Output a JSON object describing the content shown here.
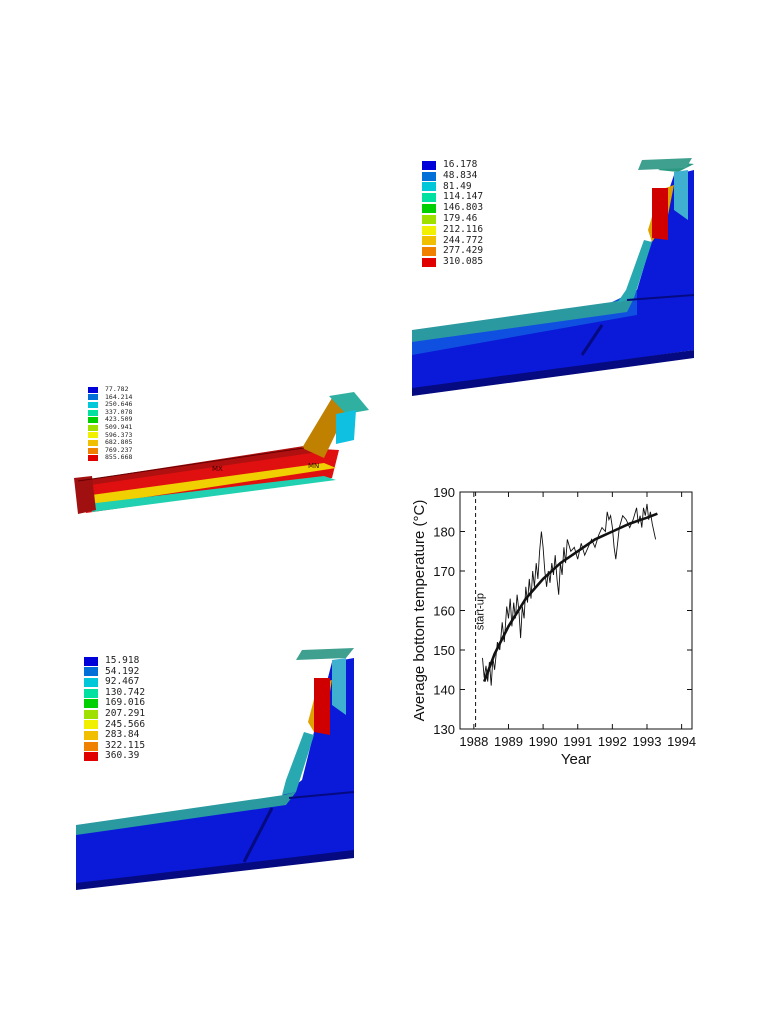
{
  "panels": [
    {
      "id": "panel-1",
      "legend": [
        "16.178",
        "48.834",
        "81.49",
        "114.147",
        "146.803",
        "179.46",
        "212.116",
        "244.772",
        "277.429",
        "310.085"
      ]
    },
    {
      "id": "panel-2",
      "legend": [
        "77.782",
        "164.214",
        "250.646",
        "337.078",
        "423.509",
        "509.941",
        "596.373",
        "682.805",
        "769.237",
        "855.668"
      ],
      "markers": {
        "mx": "MX",
        "mn": "MN"
      }
    },
    {
      "id": "panel-3",
      "legend": [
        "15.918",
        "54.192",
        "92.467",
        "130.742",
        "169.016",
        "207.291",
        "245.566",
        "283.84",
        "322.115",
        "360.39"
      ]
    }
  ],
  "legend_colors": [
    "#0000d8",
    "#0070d8",
    "#00c8d8",
    "#00e0a0",
    "#00d000",
    "#a0e000",
    "#f0f000",
    "#f0c000",
    "#f08000",
    "#e00000"
  ],
  "chart_data": {
    "type": "line",
    "title": "",
    "xlabel": "Year",
    "ylabel": "Average bottom temperature   (°C)",
    "xlim": [
      1987.6,
      1994.3
    ],
    "ylim": [
      130,
      190
    ],
    "xticks": [
      1988,
      1989,
      1990,
      1991,
      1992,
      1993,
      1994
    ],
    "yticks": [
      130,
      140,
      150,
      160,
      170,
      180,
      190
    ],
    "annotation": {
      "text": "start-up",
      "x": 1988.05
    },
    "series": [
      {
        "style": "noisy",
        "points": [
          [
            1988.25,
            148
          ],
          [
            1988.3,
            143
          ],
          [
            1988.35,
            146
          ],
          [
            1988.4,
            142
          ],
          [
            1988.45,
            147
          ],
          [
            1988.5,
            141
          ],
          [
            1988.55,
            148
          ],
          [
            1988.6,
            145
          ],
          [
            1988.68,
            152
          ],
          [
            1988.75,
            150
          ],
          [
            1988.82,
            157
          ],
          [
            1988.88,
            152
          ],
          [
            1988.95,
            161
          ],
          [
            1989.0,
            158
          ],
          [
            1989.05,
            163
          ],
          [
            1989.1,
            156
          ],
          [
            1989.15,
            162
          ],
          [
            1989.2,
            158
          ],
          [
            1989.25,
            164
          ],
          [
            1989.3,
            160
          ],
          [
            1989.35,
            153
          ],
          [
            1989.4,
            161
          ],
          [
            1989.45,
            158
          ],
          [
            1989.5,
            166
          ],
          [
            1989.55,
            162
          ],
          [
            1989.6,
            168
          ],
          [
            1989.65,
            163
          ],
          [
            1989.7,
            170
          ],
          [
            1989.75,
            166
          ],
          [
            1989.8,
            172
          ],
          [
            1989.85,
            168
          ],
          [
            1989.9,
            175
          ],
          [
            1989.95,
            180
          ],
          [
            1990.0,
            176
          ],
          [
            1990.05,
            170
          ],
          [
            1990.1,
            166
          ],
          [
            1990.15,
            170
          ],
          [
            1990.2,
            167
          ],
          [
            1990.25,
            172
          ],
          [
            1990.3,
            169
          ],
          [
            1990.35,
            174
          ],
          [
            1990.4,
            168
          ],
          [
            1990.45,
            164
          ],
          [
            1990.5,
            172
          ],
          [
            1990.55,
            169
          ],
          [
            1990.6,
            176
          ],
          [
            1990.65,
            172
          ],
          [
            1990.7,
            178
          ],
          [
            1990.8,
            175
          ],
          [
            1990.9,
            176
          ],
          [
            1991.0,
            173
          ],
          [
            1991.1,
            177
          ],
          [
            1991.2,
            174
          ],
          [
            1991.3,
            176
          ],
          [
            1991.4,
            178
          ],
          [
            1991.5,
            176
          ],
          [
            1991.6,
            179
          ],
          [
            1991.7,
            181
          ],
          [
            1991.8,
            180
          ],
          [
            1991.85,
            185
          ],
          [
            1991.9,
            183
          ],
          [
            1991.95,
            184
          ],
          [
            1992.0,
            181
          ],
          [
            1992.05,
            176
          ],
          [
            1992.1,
            173
          ],
          [
            1992.15,
            177
          ],
          [
            1992.2,
            181
          ],
          [
            1992.3,
            184
          ],
          [
            1992.4,
            183
          ],
          [
            1992.5,
            181
          ],
          [
            1992.6,
            183
          ],
          [
            1992.7,
            186
          ],
          [
            1992.75,
            182
          ],
          [
            1992.8,
            184
          ],
          [
            1992.85,
            181
          ],
          [
            1992.9,
            186
          ],
          [
            1992.95,
            184
          ],
          [
            1993.0,
            187
          ],
          [
            1993.05,
            183
          ],
          [
            1993.1,
            185
          ],
          [
            1993.15,
            182
          ],
          [
            1993.2,
            180
          ],
          [
            1993.25,
            178
          ]
        ]
      },
      {
        "style": "smooth",
        "points": [
          [
            1988.3,
            142
          ],
          [
            1988.6,
            149
          ],
          [
            1989.0,
            156
          ],
          [
            1989.5,
            163
          ],
          [
            1990.0,
            168
          ],
          [
            1990.5,
            172
          ],
          [
            1991.0,
            175
          ],
          [
            1991.5,
            178
          ],
          [
            1992.0,
            180
          ],
          [
            1992.5,
            182
          ],
          [
            1993.0,
            183.5
          ],
          [
            1993.3,
            184.5
          ]
        ]
      }
    ]
  }
}
